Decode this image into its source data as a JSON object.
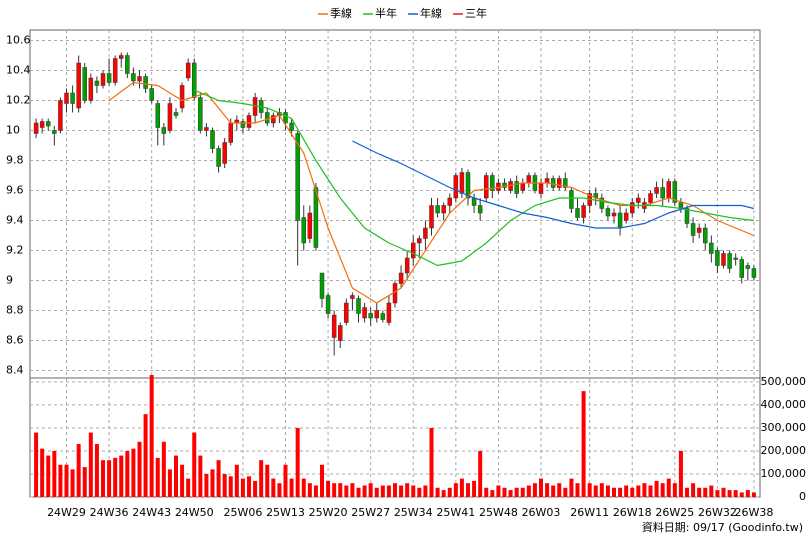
{
  "chart_data": {
    "type": "candlestick",
    "legend": "top",
    "up_color": "#ff0000",
    "down_color": "#00a000",
    "ohlc": [
      [
        9.98,
        10.08,
        9.95,
        10.05
      ],
      [
        10.02,
        10.08,
        9.98,
        10.06
      ],
      [
        10.06,
        10.08,
        10.0,
        10.03
      ],
      [
        10.0,
        10.03,
        9.9,
        9.98
      ],
      [
        10.0,
        10.22,
        9.98,
        10.2
      ],
      [
        10.18,
        10.28,
        10.12,
        10.25
      ],
      [
        10.25,
        10.3,
        10.12,
        10.18
      ],
      [
        10.15,
        10.5,
        10.12,
        10.45
      ],
      [
        10.42,
        10.45,
        10.18,
        10.2
      ],
      [
        10.2,
        10.38,
        10.18,
        10.35
      ],
      [
        10.33,
        10.36,
        10.25,
        10.3
      ],
      [
        10.3,
        10.4,
        10.28,
        10.38
      ],
      [
        10.38,
        10.48,
        10.3,
        10.32
      ],
      [
        10.32,
        10.5,
        10.3,
        10.48
      ],
      [
        10.48,
        10.52,
        10.42,
        10.5
      ],
      [
        10.5,
        10.52,
        10.35,
        10.38
      ],
      [
        10.38,
        10.42,
        10.3,
        10.33
      ],
      [
        10.33,
        10.4,
        10.28,
        10.36
      ],
      [
        10.36,
        10.38,
        10.25,
        10.28
      ],
      [
        10.28,
        10.3,
        10.18,
        10.2
      ],
      [
        10.18,
        10.2,
        9.9,
        10.02
      ],
      [
        10.02,
        10.05,
        9.9,
        9.98
      ],
      [
        10.0,
        10.22,
        9.98,
        10.18
      ],
      [
        10.12,
        10.15,
        10.08,
        10.1
      ],
      [
        10.15,
        10.32,
        10.12,
        10.3
      ],
      [
        10.35,
        10.48,
        10.33,
        10.45
      ],
      [
        10.45,
        10.48,
        10.2,
        10.22
      ],
      [
        10.22,
        10.25,
        9.98,
        10.0
      ],
      [
        10.0,
        10.05,
        9.96,
        10.02
      ],
      [
        10.0,
        10.02,
        9.85,
        9.88
      ],
      [
        9.88,
        9.9,
        9.72,
        9.76
      ],
      [
        9.78,
        9.95,
        9.75,
        9.92
      ],
      [
        9.92,
        10.08,
        9.9,
        10.05
      ],
      [
        10.05,
        10.1,
        10.0,
        10.07
      ],
      [
        10.06,
        10.08,
        9.98,
        10.02
      ],
      [
        10.02,
        10.12,
        10.0,
        10.1
      ],
      [
        10.1,
        10.25,
        10.05,
        10.22
      ],
      [
        10.2,
        10.22,
        10.08,
        10.12
      ],
      [
        10.12,
        10.15,
        10.03,
        10.05
      ],
      [
        10.05,
        10.12,
        10.02,
        10.1
      ],
      [
        10.1,
        10.15,
        10.05,
        10.12
      ],
      [
        10.12,
        10.14,
        10.0,
        10.05
      ],
      [
        10.05,
        10.08,
        9.96,
        10.0
      ],
      [
        9.98,
        10.0,
        9.1,
        9.4
      ],
      [
        9.42,
        9.5,
        9.2,
        9.25
      ],
      [
        9.28,
        9.5,
        9.25,
        9.45
      ],
      [
        9.62,
        9.65,
        9.2,
        9.22
      ],
      [
        9.05,
        9.05,
        8.82,
        8.88
      ],
      [
        8.9,
        8.92,
        8.75,
        8.78
      ],
      [
        8.62,
        8.8,
        8.5,
        8.77
      ],
      [
        8.6,
        8.72,
        8.55,
        8.7
      ],
      [
        8.72,
        8.88,
        8.7,
        8.85
      ],
      [
        8.88,
        8.92,
        8.8,
        8.9
      ],
      [
        8.88,
        8.9,
        8.72,
        8.78
      ],
      [
        8.75,
        8.85,
        8.72,
        8.82
      ],
      [
        8.78,
        8.82,
        8.7,
        8.75
      ],
      [
        8.75,
        8.85,
        8.72,
        8.8
      ],
      [
        8.78,
        8.8,
        8.72,
        8.74
      ],
      [
        8.72,
        8.9,
        8.7,
        8.85
      ],
      [
        8.85,
        9.0,
        8.82,
        8.98
      ],
      [
        8.98,
        9.1,
        8.95,
        9.05
      ],
      [
        9.05,
        9.2,
        9.0,
        9.15
      ],
      [
        9.15,
        9.3,
        9.1,
        9.25
      ],
      [
        9.25,
        9.3,
        9.15,
        9.28
      ],
      [
        9.28,
        9.4,
        9.2,
        9.35
      ],
      [
        9.35,
        9.55,
        9.3,
        9.5
      ],
      [
        9.5,
        9.55,
        9.42,
        9.45
      ],
      [
        9.45,
        9.52,
        9.4,
        9.5
      ],
      [
        9.5,
        9.58,
        9.45,
        9.55
      ],
      [
        9.55,
        9.72,
        9.52,
        9.7
      ],
      [
        9.58,
        9.75,
        9.55,
        9.72
      ],
      [
        9.72,
        9.74,
        9.5,
        9.55
      ],
      [
        9.55,
        9.58,
        9.45,
        9.5
      ],
      [
        9.5,
        9.55,
        9.4,
        9.45
      ],
      [
        9.55,
        9.72,
        9.52,
        9.7
      ],
      [
        9.7,
        9.72,
        9.55,
        9.6
      ],
      [
        9.6,
        9.68,
        9.58,
        9.65
      ],
      [
        9.65,
        9.68,
        9.6,
        9.62
      ],
      [
        9.6,
        9.68,
        9.58,
        9.66
      ],
      [
        9.66,
        9.7,
        9.55,
        9.58
      ],
      [
        9.6,
        9.68,
        9.58,
        9.65
      ],
      [
        9.65,
        9.72,
        9.62,
        9.7
      ],
      [
        9.7,
        9.72,
        9.58,
        9.6
      ],
      [
        9.58,
        9.68,
        9.55,
        9.65
      ],
      [
        9.65,
        9.72,
        9.62,
        9.68
      ],
      [
        9.68,
        9.7,
        9.6,
        9.62
      ],
      [
        9.62,
        9.7,
        9.6,
        9.68
      ],
      [
        9.68,
        9.72,
        9.6,
        9.62
      ],
      [
        9.6,
        9.62,
        9.45,
        9.48
      ],
      [
        9.48,
        9.55,
        9.4,
        9.42
      ],
      [
        9.42,
        9.52,
        9.38,
        9.5
      ],
      [
        9.5,
        9.6,
        9.45,
        9.58
      ],
      [
        9.58,
        9.62,
        9.5,
        9.55
      ],
      [
        9.55,
        9.58,
        9.45,
        9.48
      ],
      [
        9.48,
        9.5,
        9.4,
        9.43
      ],
      [
        9.43,
        9.48,
        9.38,
        9.45
      ],
      [
        9.45,
        9.5,
        9.3,
        9.35
      ],
      [
        9.4,
        9.48,
        9.38,
        9.45
      ],
      [
        9.45,
        9.55,
        9.42,
        9.52
      ],
      [
        9.52,
        9.58,
        9.48,
        9.55
      ],
      [
        9.48,
        9.55,
        9.45,
        9.52
      ],
      [
        9.52,
        9.6,
        9.5,
        9.58
      ],
      [
        9.58,
        9.66,
        9.55,
        9.62
      ],
      [
        9.62,
        9.68,
        9.5,
        9.55
      ],
      [
        9.55,
        9.68,
        9.52,
        9.66
      ],
      [
        9.66,
        9.68,
        9.5,
        9.52
      ],
      [
        9.52,
        9.55,
        9.45,
        9.48
      ],
      [
        9.48,
        9.5,
        9.35,
        9.38
      ],
      [
        9.38,
        9.42,
        9.25,
        9.3
      ],
      [
        9.32,
        9.38,
        9.28,
        9.35
      ],
      [
        9.35,
        9.38,
        9.2,
        9.25
      ],
      [
        9.25,
        9.3,
        9.12,
        9.18
      ],
      [
        9.2,
        9.22,
        9.05,
        9.1
      ],
      [
        9.1,
        9.2,
        9.08,
        9.18
      ],
      [
        9.18,
        9.2,
        9.05,
        9.08
      ],
      [
        9.15,
        9.18,
        9.1,
        9.14
      ],
      [
        9.14,
        9.16,
        8.98,
        9.02
      ],
      [
        9.1,
        9.12,
        9.0,
        9.08
      ],
      [
        9.08,
        9.1,
        9.0,
        9.02
      ]
    ],
    "series": [
      {
        "name": "季線",
        "color": "#f07010",
        "x": [
          12,
          16,
          20,
          24,
          28,
          32,
          36,
          40,
          44,
          48,
          52,
          56,
          60,
          64,
          68,
          72,
          76,
          80,
          84,
          88,
          92,
          96,
          100,
          104,
          108,
          112,
          118
        ],
        "values": [
          10.2,
          10.32,
          10.3,
          10.2,
          10.25,
          10.05,
          10.05,
          10.1,
          9.85,
          9.35,
          8.95,
          8.85,
          8.95,
          9.2,
          9.45,
          9.6,
          9.62,
          9.65,
          9.65,
          9.62,
          9.55,
          9.5,
          9.5,
          9.55,
          9.5,
          9.4,
          9.3
        ]
      },
      {
        "name": "半年",
        "color": "#20c020",
        "x": [
          26,
          30,
          34,
          38,
          42,
          46,
          50,
          54,
          58,
          62,
          66,
          70,
          74,
          78,
          82,
          86,
          90,
          94,
          98,
          102,
          106,
          110,
          114,
          118
        ],
        "values": [
          10.27,
          10.2,
          10.18,
          10.15,
          10.08,
          9.8,
          9.55,
          9.35,
          9.25,
          9.18,
          9.1,
          9.13,
          9.25,
          9.4,
          9.5,
          9.55,
          9.55,
          9.52,
          9.5,
          9.5,
          9.48,
          9.45,
          9.42,
          9.4
        ]
      },
      {
        "name": "年線",
        "color": "#1060d0",
        "x": [
          52,
          56,
          60,
          64,
          68,
          72,
          76,
          80,
          84,
          88,
          92,
          96,
          100,
          104,
          108,
          112,
          116,
          118
        ],
        "values": [
          9.93,
          9.85,
          9.78,
          9.7,
          9.62,
          9.55,
          9.5,
          9.45,
          9.42,
          9.38,
          9.35,
          9.35,
          9.38,
          9.45,
          9.5,
          9.5,
          9.5,
          9.48
        ]
      },
      {
        "name": "三年",
        "color": "#e02020",
        "x": [],
        "values": []
      }
    ],
    "xlim": [
      -1,
      119
    ],
    "xticks": [
      {
        "value": 5,
        "label": "24W29"
      },
      {
        "value": 12,
        "label": "24W36"
      },
      {
        "value": 19,
        "label": "24W43"
      },
      {
        "value": 26,
        "label": "24W50"
      },
      {
        "value": 34,
        "label": "25W06"
      },
      {
        "value": 41,
        "label": "25W13"
      },
      {
        "value": 48,
        "label": "25W20"
      },
      {
        "value": 55,
        "label": "25W27"
      },
      {
        "value": 62,
        "label": "25W34"
      },
      {
        "value": 69,
        "label": "25W41"
      },
      {
        "value": 76,
        "label": "25W48"
      },
      {
        "value": 83,
        "label": "26W03"
      },
      {
        "value": 91,
        "label": "26W11"
      },
      {
        "value": 98,
        "label": "26W18"
      },
      {
        "value": 105,
        "label": "26W25"
      },
      {
        "value": 112,
        "label": "26W32"
      },
      {
        "value": 118,
        "label": "26W38"
      }
    ],
    "ylim": [
      8.35,
      10.67
    ],
    "yticks": [
      8.4,
      8.6,
      8.8,
      9,
      9.2,
      9.4,
      9.6,
      9.8,
      10,
      10.2,
      10.4,
      10.6
    ],
    "grid": true,
    "volume": {
      "color": "#ff0000",
      "values": [
        280000,
        210000,
        180000,
        200000,
        140000,
        140000,
        120000,
        230000,
        130000,
        280000,
        230000,
        160000,
        160000,
        170000,
        180000,
        200000,
        210000,
        240000,
        360000,
        530000,
        170000,
        240000,
        120000,
        180000,
        140000,
        80000,
        280000,
        180000,
        100000,
        120000,
        160000,
        100000,
        90000,
        140000,
        80000,
        90000,
        70000,
        160000,
        140000,
        80000,
        60000,
        140000,
        80000,
        300000,
        80000,
        60000,
        50000,
        140000,
        70000,
        60000,
        60000,
        50000,
        60000,
        40000,
        50000,
        60000,
        40000,
        50000,
        50000,
        60000,
        50000,
        60000,
        50000,
        40000,
        50000,
        300000,
        40000,
        30000,
        40000,
        60000,
        80000,
        60000,
        70000,
        200000,
        40000,
        30000,
        50000,
        40000,
        30000,
        40000,
        40000,
        50000,
        60000,
        80000,
        60000,
        50000,
        60000,
        40000,
        80000,
        60000,
        460000,
        60000,
        50000,
        60000,
        50000,
        40000,
        40000,
        50000,
        40000,
        50000,
        60000,
        50000,
        70000,
        60000,
        80000,
        60000,
        200000,
        40000,
        60000,
        40000,
        40000,
        50000,
        30000,
        40000,
        30000,
        30000,
        20000,
        30000,
        20000
      ],
      "ylim": [
        0,
        517000
      ],
      "yticks": [
        0,
        {
          "value": 100000,
          "label": "100,000"
        },
        {
          "value": 200000,
          "label": "200,000"
        },
        {
          "value": 300000,
          "label": "300,000"
        },
        {
          "value": 400000,
          "label": "400,000"
        },
        {
          "value": 500000,
          "label": "500,000"
        }
      ]
    },
    "footnote": "資料日期: 09/17 (Goodinfo.tw)"
  }
}
